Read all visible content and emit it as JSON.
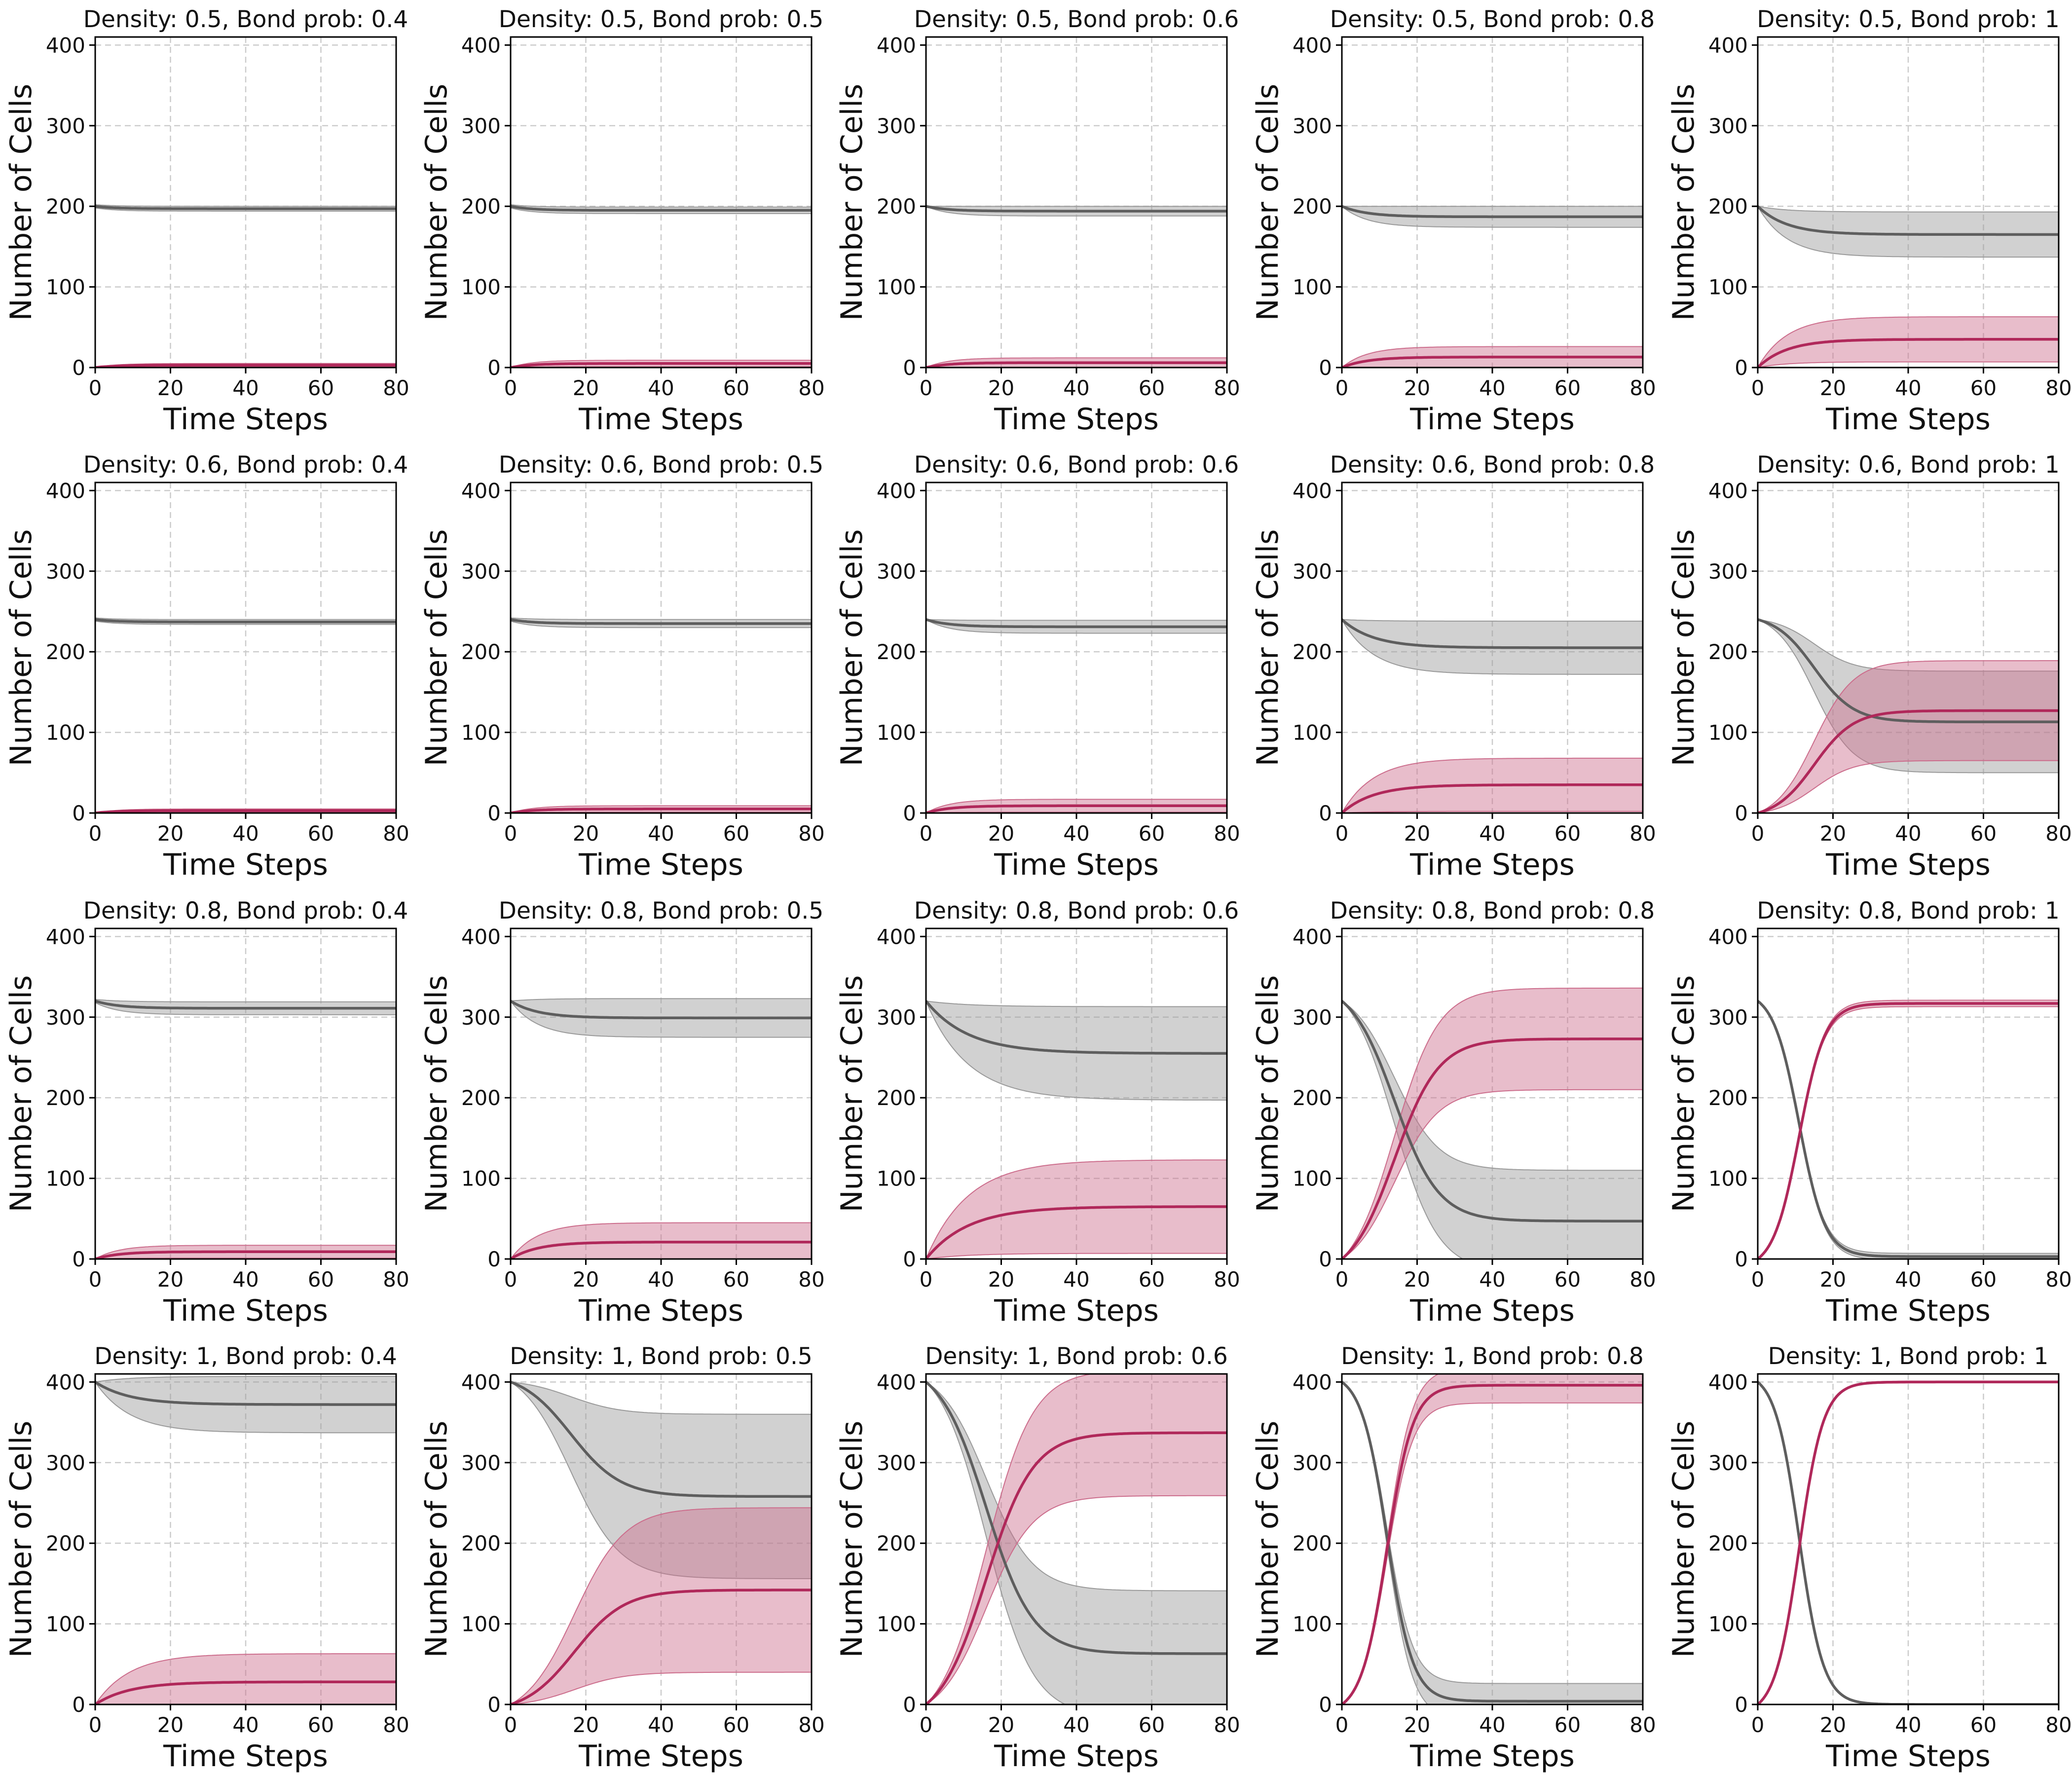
{
  "figure": {
    "xlabel": "Time Steps",
    "ylabel": "Number of Cells",
    "xticks": [
      0,
      20,
      40,
      60,
      80
    ],
    "yticks": [
      0,
      100,
      200,
      300,
      400
    ],
    "colors": {
      "intact_line": "#5e5e5e",
      "intact_band": "#9a9a9a",
      "converted_line": "#b0285a",
      "converted_band": "#cc6d8c",
      "grid": "#cccccc"
    }
  },
  "chart_data": [
    {
      "type": "line",
      "title": "Density: 0.5, Bond prob: 0.4",
      "xlabel": "Time Steps",
      "ylabel": "Number of Cells",
      "xlim": [
        0,
        80
      ],
      "ylim": [
        0,
        410
      ],
      "grid": true,
      "series": [
        {
          "start": 200,
          "end": 197,
          "rate": 0.18,
          "band_end": 3,
          "band_start": 2
        },
        {
          "start": 0,
          "end": 3,
          "rate": 0.18,
          "band_end": 2,
          "band_start": 0
        }
      ]
    },
    {
      "type": "line",
      "title": "Density: 0.5, Bond prob: 0.5",
      "xlabel": "Time Steps",
      "ylabel": "Number of Cells",
      "xlim": [
        0,
        80
      ],
      "ylim": [
        0,
        410
      ],
      "grid": true,
      "series": [
        {
          "start": 200,
          "end": 195,
          "rate": 0.18,
          "band_end": 4,
          "band_start": 2
        },
        {
          "start": 0,
          "end": 5,
          "rate": 0.18,
          "band_end": 4,
          "band_start": 0
        }
      ]
    },
    {
      "type": "line",
      "title": "Density: 0.5, Bond prob: 0.6",
      "xlabel": "Time Steps",
      "ylabel": "Number of Cells",
      "xlim": [
        0,
        80
      ],
      "ylim": [
        0,
        410
      ],
      "grid": true,
      "series": [
        {
          "start": 200,
          "end": 194,
          "rate": 0.17,
          "band_end": 6,
          "band_start": 0
        },
        {
          "start": 0,
          "end": 6,
          "rate": 0.17,
          "band_end": 6,
          "band_start": 0
        }
      ]
    },
    {
      "type": "line",
      "title": "Density: 0.5, Bond prob: 0.8",
      "xlabel": "Time Steps",
      "ylabel": "Number of Cells",
      "xlim": [
        0,
        80
      ],
      "ylim": [
        0,
        410
      ],
      "grid": true,
      "series": [
        {
          "start": 200,
          "end": 187,
          "rate": 0.15,
          "band_end": 13,
          "band_start": 0
        },
        {
          "start": 0,
          "end": 13,
          "rate": 0.15,
          "band_end": 13,
          "band_start": 0
        }
      ]
    },
    {
      "type": "line",
      "title": "Density: 0.5, Bond prob: 1",
      "xlabel": "Time Steps",
      "ylabel": "Number of Cells",
      "xlim": [
        0,
        80
      ],
      "ylim": [
        0,
        410
      ],
      "grid": true,
      "series": [
        {
          "start": 200,
          "end": 165,
          "rate": 0.13,
          "band_end": 28,
          "band_start": 0
        },
        {
          "start": 0,
          "end": 35,
          "rate": 0.13,
          "band_end": 28,
          "band_start": 0
        }
      ]
    },
    {
      "type": "line",
      "title": "Density: 0.6, Bond prob: 0.4",
      "xlabel": "Time Steps",
      "ylabel": "Number of Cells",
      "xlim": [
        0,
        80
      ],
      "ylim": [
        0,
        410
      ],
      "grid": true,
      "series": [
        {
          "start": 240,
          "end": 237,
          "rate": 0.18,
          "band_end": 3,
          "band_start": 2
        },
        {
          "start": 0,
          "end": 3,
          "rate": 0.18,
          "band_end": 2,
          "band_start": 0
        }
      ]
    },
    {
      "type": "line",
      "title": "Density: 0.6, Bond prob: 0.5",
      "xlabel": "Time Steps",
      "ylabel": "Number of Cells",
      "xlim": [
        0,
        80
      ],
      "ylim": [
        0,
        410
      ],
      "grid": true,
      "series": [
        {
          "start": 240,
          "end": 235,
          "rate": 0.17,
          "band_end": 5,
          "band_start": 2
        },
        {
          "start": 0,
          "end": 5,
          "rate": 0.17,
          "band_end": 4,
          "band_start": 0
        }
      ]
    },
    {
      "type": "line",
      "title": "Density: 0.6, Bond prob: 0.6",
      "xlabel": "Time Steps",
      "ylabel": "Number of Cells",
      "xlim": [
        0,
        80
      ],
      "ylim": [
        0,
        410
      ],
      "grid": true,
      "series": [
        {
          "start": 240,
          "end": 231,
          "rate": 0.16,
          "band_end": 8,
          "band_start": 0
        },
        {
          "start": 0,
          "end": 9,
          "rate": 0.16,
          "band_end": 8,
          "band_start": 0
        }
      ]
    },
    {
      "type": "line",
      "title": "Density: 0.6, Bond prob: 0.8",
      "xlabel": "Time Steps",
      "ylabel": "Number of Cells",
      "xlim": [
        0,
        80
      ],
      "ylim": [
        0,
        410
      ],
      "grid": true,
      "series": [
        {
          "start": 240,
          "end": 205,
          "rate": 0.12,
          "band_end": 33,
          "band_start": 0
        },
        {
          "start": 0,
          "end": 35,
          "rate": 0.12,
          "band_end": 33,
          "band_start": 0
        }
      ]
    },
    {
      "type": "line",
      "title": "Density: 0.6, Bond prob: 1",
      "xlabel": "Time Steps",
      "ylabel": "Number of Cells",
      "xlim": [
        0,
        80
      ],
      "ylim": [
        0,
        410
      ],
      "grid": true,
      "series": [
        {
          "start": 240,
          "end": 113,
          "mid": 15,
          "steep": 0.19,
          "band_end": 63,
          "band_start": 0
        },
        {
          "start": 0,
          "end": 127,
          "mid": 15,
          "steep": 0.19,
          "band_end": 62,
          "band_start": 0
        }
      ]
    },
    {
      "type": "line",
      "title": "Density: 0.8, Bond prob: 0.4",
      "xlabel": "Time Steps",
      "ylabel": "Number of Cells",
      "xlim": [
        0,
        80
      ],
      "ylim": [
        0,
        410
      ],
      "grid": true,
      "series": [
        {
          "start": 320,
          "end": 311,
          "rate": 0.16,
          "band_end": 8,
          "band_start": 2
        },
        {
          "start": 0,
          "end": 9,
          "rate": 0.16,
          "band_end": 8,
          "band_start": 0
        }
      ]
    },
    {
      "type": "line",
      "title": "Density: 0.8, Bond prob: 0.5",
      "xlabel": "Time Steps",
      "ylabel": "Number of Cells",
      "xlim": [
        0,
        80
      ],
      "ylim": [
        0,
        410
      ],
      "grid": true,
      "series": [
        {
          "start": 320,
          "end": 299,
          "rate": 0.14,
          "band_end": 24,
          "band_start": 0
        },
        {
          "start": 0,
          "end": 21,
          "rate": 0.14,
          "band_end": 24,
          "band_start": 0
        }
      ]
    },
    {
      "type": "line",
      "title": "Density: 0.8, Bond prob: 0.6",
      "xlabel": "Time Steps",
      "ylabel": "Number of Cells",
      "xlim": [
        0,
        80
      ],
      "ylim": [
        0,
        410
      ],
      "grid": true,
      "series": [
        {
          "start": 320,
          "end": 255,
          "rate": 0.09,
          "band_end": 58,
          "band_start": 0
        },
        {
          "start": 0,
          "end": 65,
          "rate": 0.09,
          "band_end": 58,
          "band_start": 0
        }
      ]
    },
    {
      "type": "line",
      "title": "Density: 0.8, Bond prob: 0.8",
      "xlabel": "Time Steps",
      "ylabel": "Number of Cells",
      "xlim": [
        0,
        80
      ],
      "ylim": [
        0,
        410
      ],
      "grid": true,
      "series": [
        {
          "start": 320,
          "end": 47,
          "mid": 14,
          "steep": 0.17,
          "band_end": 63,
          "band_start": 0
        },
        {
          "start": 0,
          "end": 273,
          "mid": 14,
          "steep": 0.17,
          "band_end": 63,
          "band_start": 0
        }
      ]
    },
    {
      "type": "line",
      "title": "Density: 0.8, Bond prob: 1",
      "xlabel": "Time Steps",
      "ylabel": "Number of Cells",
      "xlim": [
        0,
        80
      ],
      "ylim": [
        0,
        410
      ],
      "grid": true,
      "series": [
        {
          "start": 320,
          "end": 3,
          "mid": 11,
          "steep": 0.29,
          "band_end": 4,
          "band_start": 0
        },
        {
          "start": 0,
          "end": 317,
          "mid": 11,
          "steep": 0.29,
          "band_end": 4,
          "band_start": 0
        }
      ]
    },
    {
      "type": "line",
      "title": "Density: 1, Bond prob: 0.4",
      "xlabel": "Time Steps",
      "ylabel": "Number of Cells",
      "xlim": [
        0,
        80
      ],
      "ylim": [
        0,
        410
      ],
      "grid": true,
      "series": [
        {
          "start": 400,
          "end": 372,
          "rate": 0.11,
          "band_end": 35,
          "band_start": 0
        },
        {
          "start": 0,
          "end": 28,
          "rate": 0.11,
          "band_end": 35,
          "band_start": 0
        }
      ]
    },
    {
      "type": "line",
      "title": "Density: 1, Bond prob: 0.5",
      "xlabel": "Time Steps",
      "ylabel": "Number of Cells",
      "xlim": [
        0,
        80
      ],
      "ylim": [
        0,
        410
      ],
      "grid": true,
      "series": [
        {
          "start": 400,
          "end": 258,
          "mid": 16,
          "steep": 0.15,
          "band_end": 102,
          "band_start": 0
        },
        {
          "start": 0,
          "end": 142,
          "mid": 17,
          "steep": 0.15,
          "band_end": 102,
          "band_start": 0
        }
      ]
    },
    {
      "type": "line",
      "title": "Density: 1, Bond prob: 0.6",
      "xlabel": "Time Steps",
      "ylabel": "Number of Cells",
      "xlim": [
        0,
        80
      ],
      "ylim": [
        0,
        410
      ],
      "grid": true,
      "series": [
        {
          "start": 400,
          "end": 63,
          "mid": 16,
          "steep": 0.16,
          "band_end": 78,
          "band_start": 0
        },
        {
          "start": 0,
          "end": 337,
          "mid": 16,
          "steep": 0.16,
          "band_end": 78,
          "band_start": 0
        }
      ]
    },
    {
      "type": "line",
      "title": "Density: 1, Bond prob: 0.8",
      "xlabel": "Time Steps",
      "ylabel": "Number of Cells",
      "xlim": [
        0,
        80
      ],
      "ylim": [
        0,
        410
      ],
      "grid": true,
      "series": [
        {
          "start": 400,
          "end": 4,
          "mid": 12,
          "steep": 0.29,
          "band_end": 22,
          "band_start": 0
        },
        {
          "start": 0,
          "end": 396,
          "mid": 12,
          "steep": 0.29,
          "band_end": 22,
          "band_start": 0
        }
      ]
    },
    {
      "type": "line",
      "title": "Density: 1, Bond prob: 1",
      "xlabel": "Time Steps",
      "ylabel": "Number of Cells",
      "xlim": [
        0,
        80
      ],
      "ylim": [
        0,
        410
      ],
      "grid": true,
      "series": [
        {
          "start": 400,
          "end": 0,
          "mid": 11,
          "steep": 0.31,
          "band_end": 1,
          "band_start": 0
        },
        {
          "start": 0,
          "end": 400,
          "mid": 11,
          "steep": 0.31,
          "band_end": 1,
          "band_start": 0
        }
      ]
    }
  ]
}
